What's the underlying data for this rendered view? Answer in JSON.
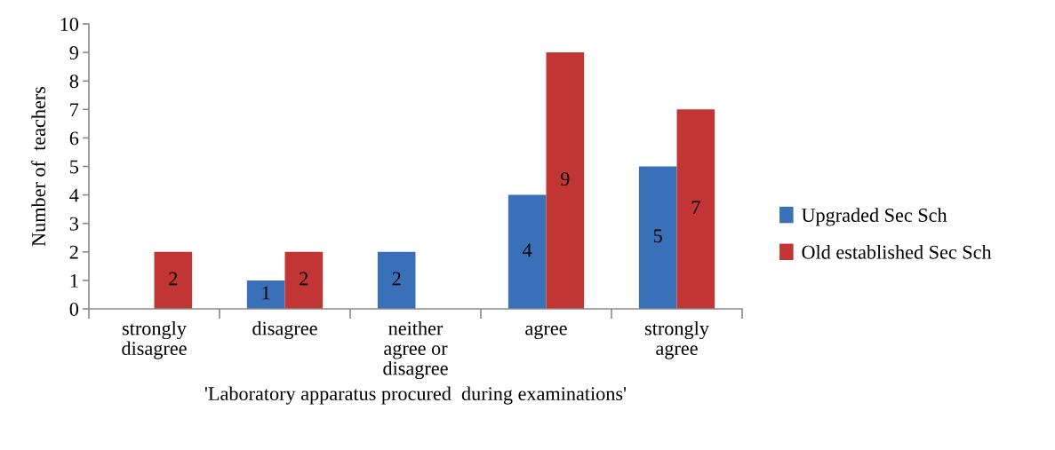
{
  "chart_data": {
    "type": "bar",
    "xlabel": "'Laboratory apparatus procured  during examinations'",
    "ylabel": "Number of  teachers",
    "categories": [
      "strongly\ndisagree",
      "disagree",
      "neither\nagree or\ndisagree",
      "agree",
      "strongly\nagree"
    ],
    "series": [
      {
        "name": "Upgraded Sec Sch",
        "color": "#3a70b8",
        "values": [
          0,
          1,
          2,
          4,
          5
        ],
        "value_labels": [
          null,
          "1",
          "2",
          "4",
          "5"
        ]
      },
      {
        "name": "Old established Sec Sch",
        "color": "#c13634",
        "values": [
          2,
          2,
          0,
          9,
          7
        ],
        "value_labels": [
          "2",
          "2",
          null,
          "9",
          "7"
        ]
      }
    ],
    "ylim": [
      0,
      10
    ],
    "yticks": [
      0,
      1,
      2,
      3,
      4,
      5,
      6,
      7,
      8,
      9,
      10
    ],
    "grid": false,
    "legend": "right"
  }
}
